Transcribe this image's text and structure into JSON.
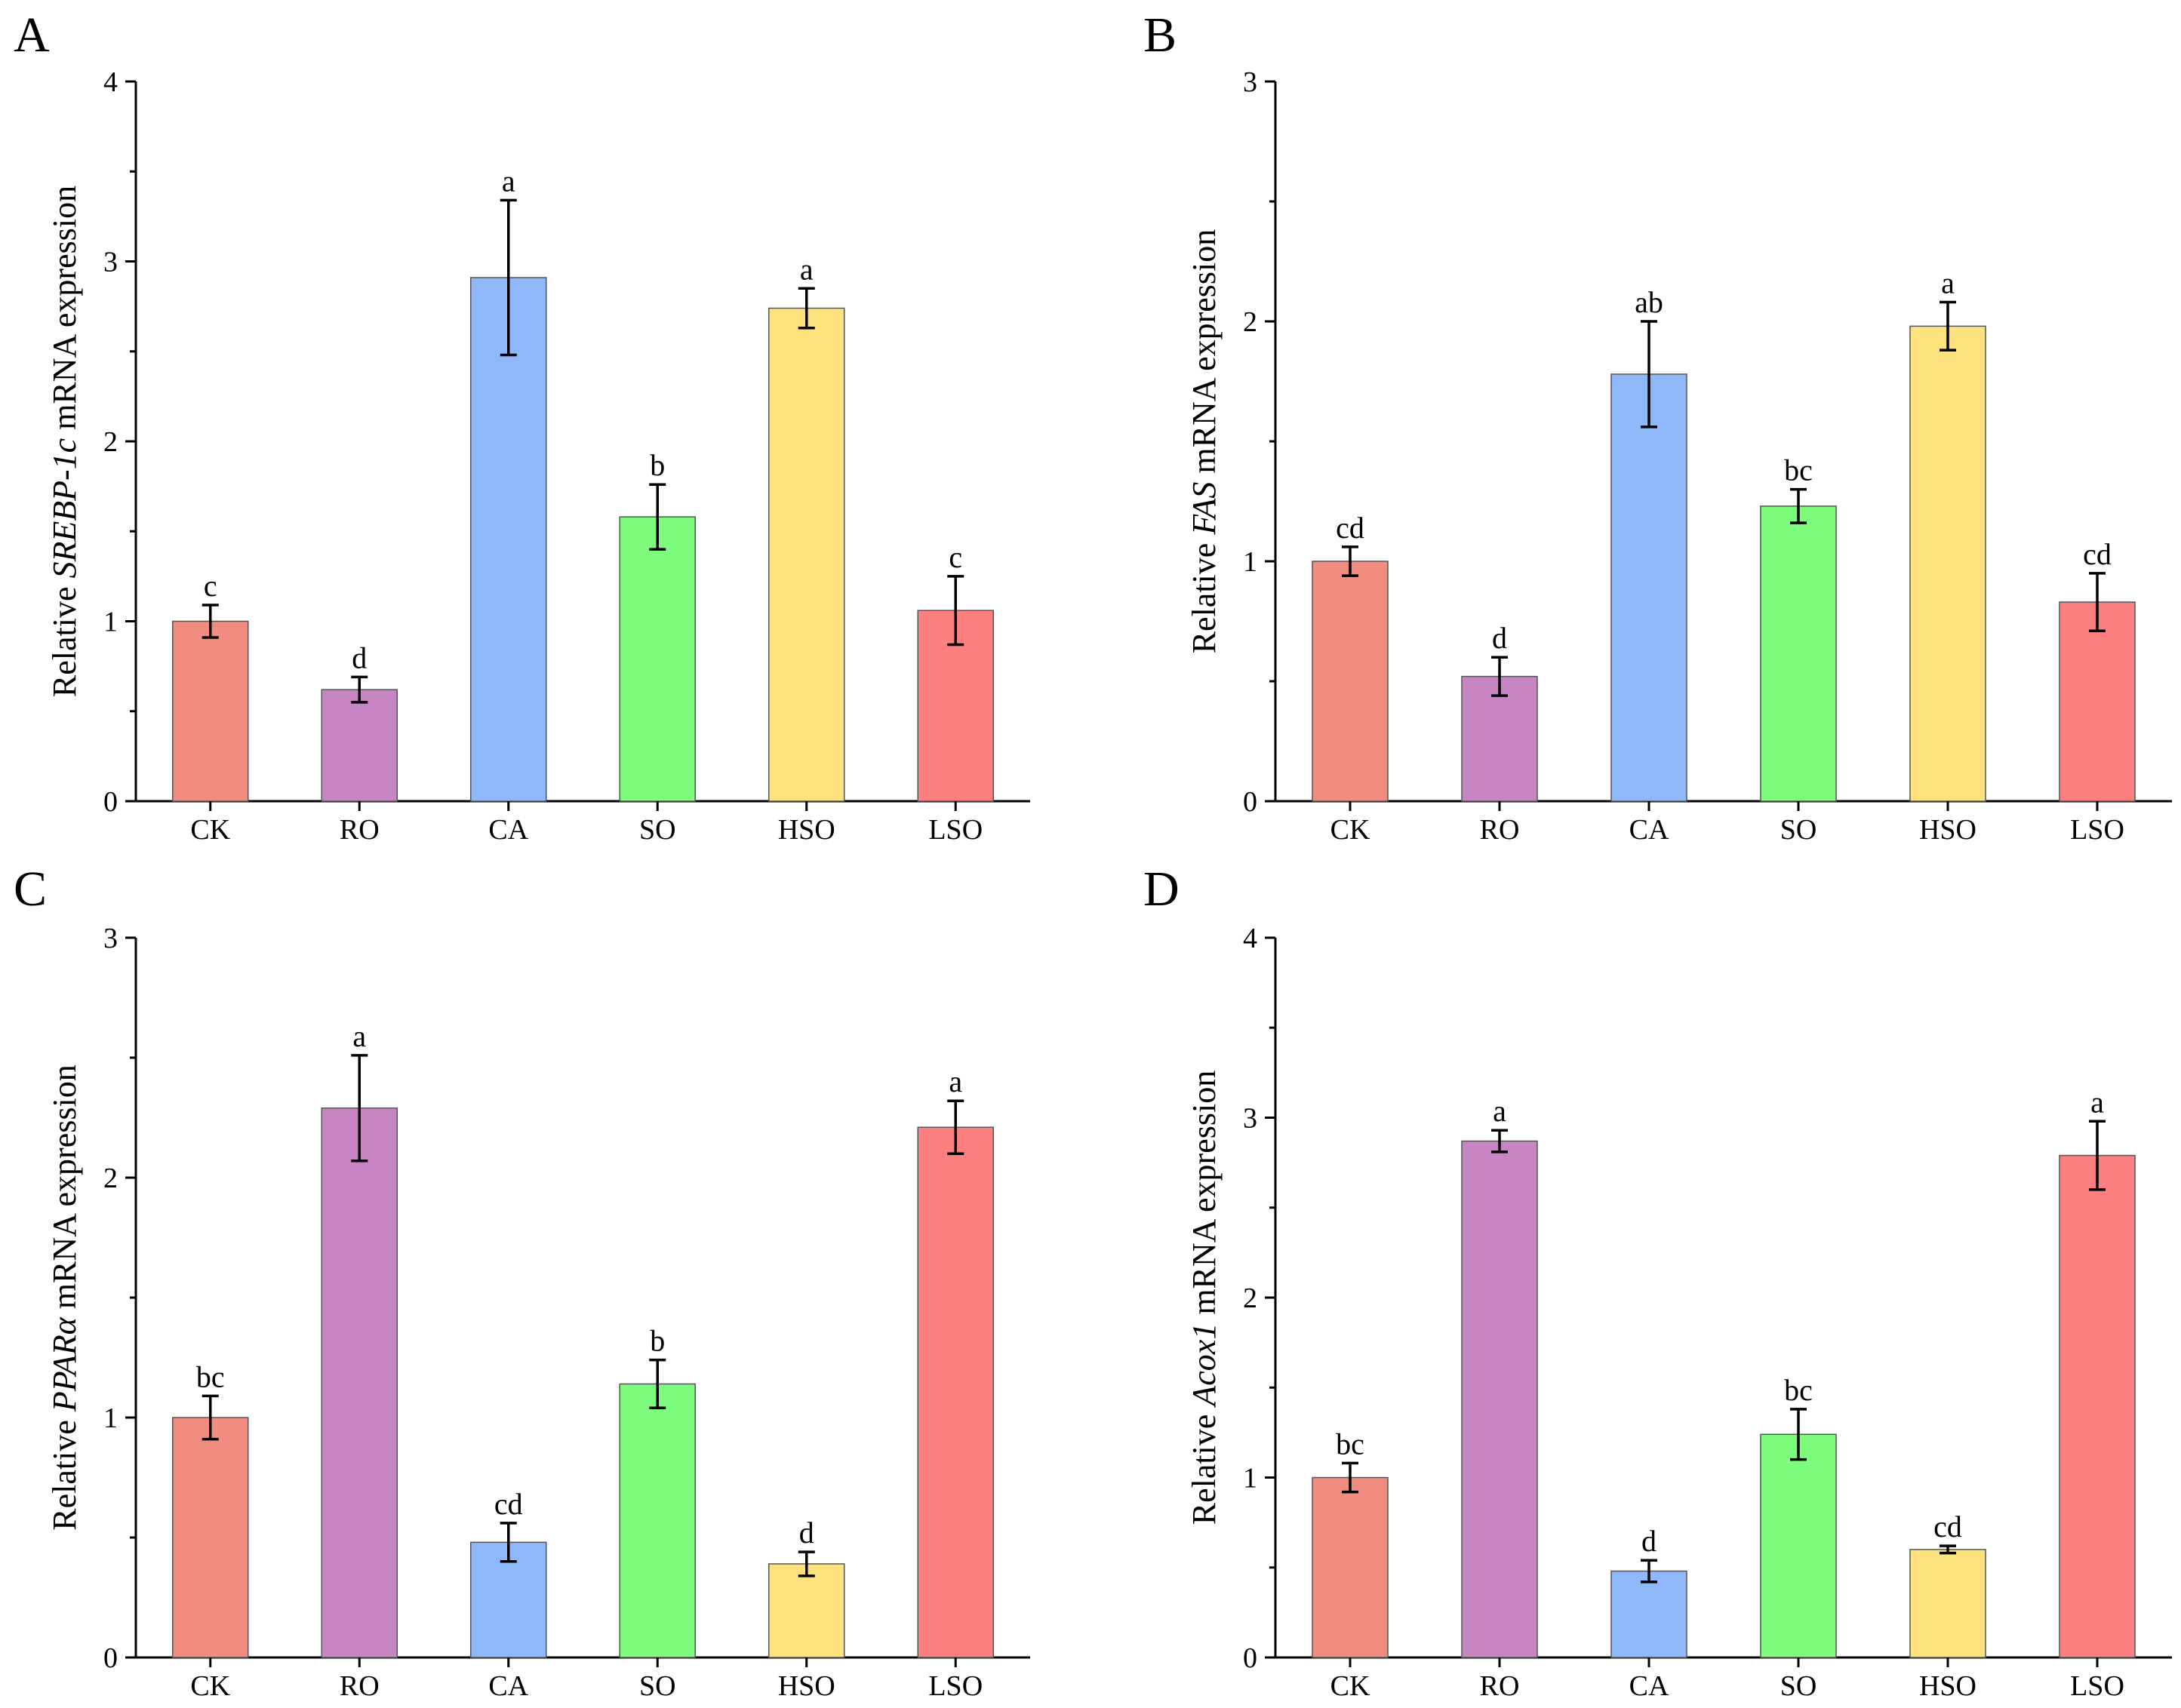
{
  "chart_data": [
    {
      "panel": "A",
      "type": "bar",
      "ylabel_prefix": "Relative ",
      "ylabel_gene": "SREBP-1c",
      "ylabel_suffix": " mRNA expression",
      "ylim": [
        0,
        4
      ],
      "yticks": [
        0,
        1,
        2,
        3,
        4
      ],
      "categories": [
        "CK",
        "RO",
        "CA",
        "SO",
        "HSO",
        "LSO"
      ],
      "values": [
        1.0,
        0.62,
        2.91,
        1.58,
        2.74,
        1.06
      ],
      "errors": [
        0.09,
        0.07,
        0.43,
        0.18,
        0.11,
        0.19
      ],
      "significance": [
        "c",
        "d",
        "a",
        "b",
        "a",
        "c"
      ],
      "colors": [
        "#F08C80",
        "#C785C4",
        "#8FB8FA",
        "#7DFC7D",
        "#FDE27E",
        "#FD8080"
      ]
    },
    {
      "panel": "B",
      "type": "bar",
      "ylabel_prefix": "Relative ",
      "ylabel_gene": "FAS",
      "ylabel_suffix": " mRNA expression",
      "ylim": [
        0,
        3
      ],
      "yticks": [
        0,
        1,
        2,
        3
      ],
      "categories": [
        "CK",
        "RO",
        "CA",
        "SO",
        "HSO",
        "LSO"
      ],
      "values": [
        1.0,
        0.52,
        1.78,
        1.23,
        1.98,
        0.83
      ],
      "errors": [
        0.06,
        0.08,
        0.22,
        0.07,
        0.1,
        0.12
      ],
      "significance": [
        "cd",
        "d",
        "ab",
        "bc",
        "a",
        "cd"
      ],
      "colors": [
        "#F08C80",
        "#C785C4",
        "#8FB8FA",
        "#7DFC7D",
        "#FDE27E",
        "#FD8080"
      ]
    },
    {
      "panel": "C",
      "type": "bar",
      "ylabel_prefix": "Relative ",
      "ylabel_gene": "PPARα",
      "ylabel_suffix": " mRNA expression",
      "ylim": [
        0,
        3
      ],
      "yticks": [
        0,
        1,
        2,
        3
      ],
      "categories": [
        "CK",
        "RO",
        "CA",
        "SO",
        "HSO",
        "LSO"
      ],
      "values": [
        1.0,
        2.29,
        0.48,
        1.14,
        0.39,
        2.21
      ],
      "errors": [
        0.09,
        0.22,
        0.08,
        0.1,
        0.05,
        0.11
      ],
      "significance": [
        "bc",
        "a",
        "cd",
        "b",
        "d",
        "a"
      ],
      "colors": [
        "#F08C80",
        "#C785C4",
        "#8FB8FA",
        "#7DFC7D",
        "#FDE27E",
        "#FD8080"
      ]
    },
    {
      "panel": "D",
      "type": "bar",
      "ylabel_prefix": "Relative ",
      "ylabel_gene": "Acox1",
      "ylabel_suffix": " mRNA expression",
      "ylim": [
        0,
        4
      ],
      "yticks": [
        0,
        1,
        2,
        3,
        4
      ],
      "categories": [
        "CK",
        "RO",
        "CA",
        "SO",
        "HSO",
        "LSO"
      ],
      "values": [
        1.0,
        2.87,
        0.48,
        1.24,
        0.6,
        2.79
      ],
      "errors": [
        0.08,
        0.06,
        0.06,
        0.14,
        0.02,
        0.19
      ],
      "significance": [
        "bc",
        "a",
        "d",
        "bc",
        "cd",
        "a"
      ],
      "colors": [
        "#F08C80",
        "#C785C4",
        "#8FB8FA",
        "#7DFC7D",
        "#FDE27E",
        "#FD8080"
      ]
    }
  ]
}
